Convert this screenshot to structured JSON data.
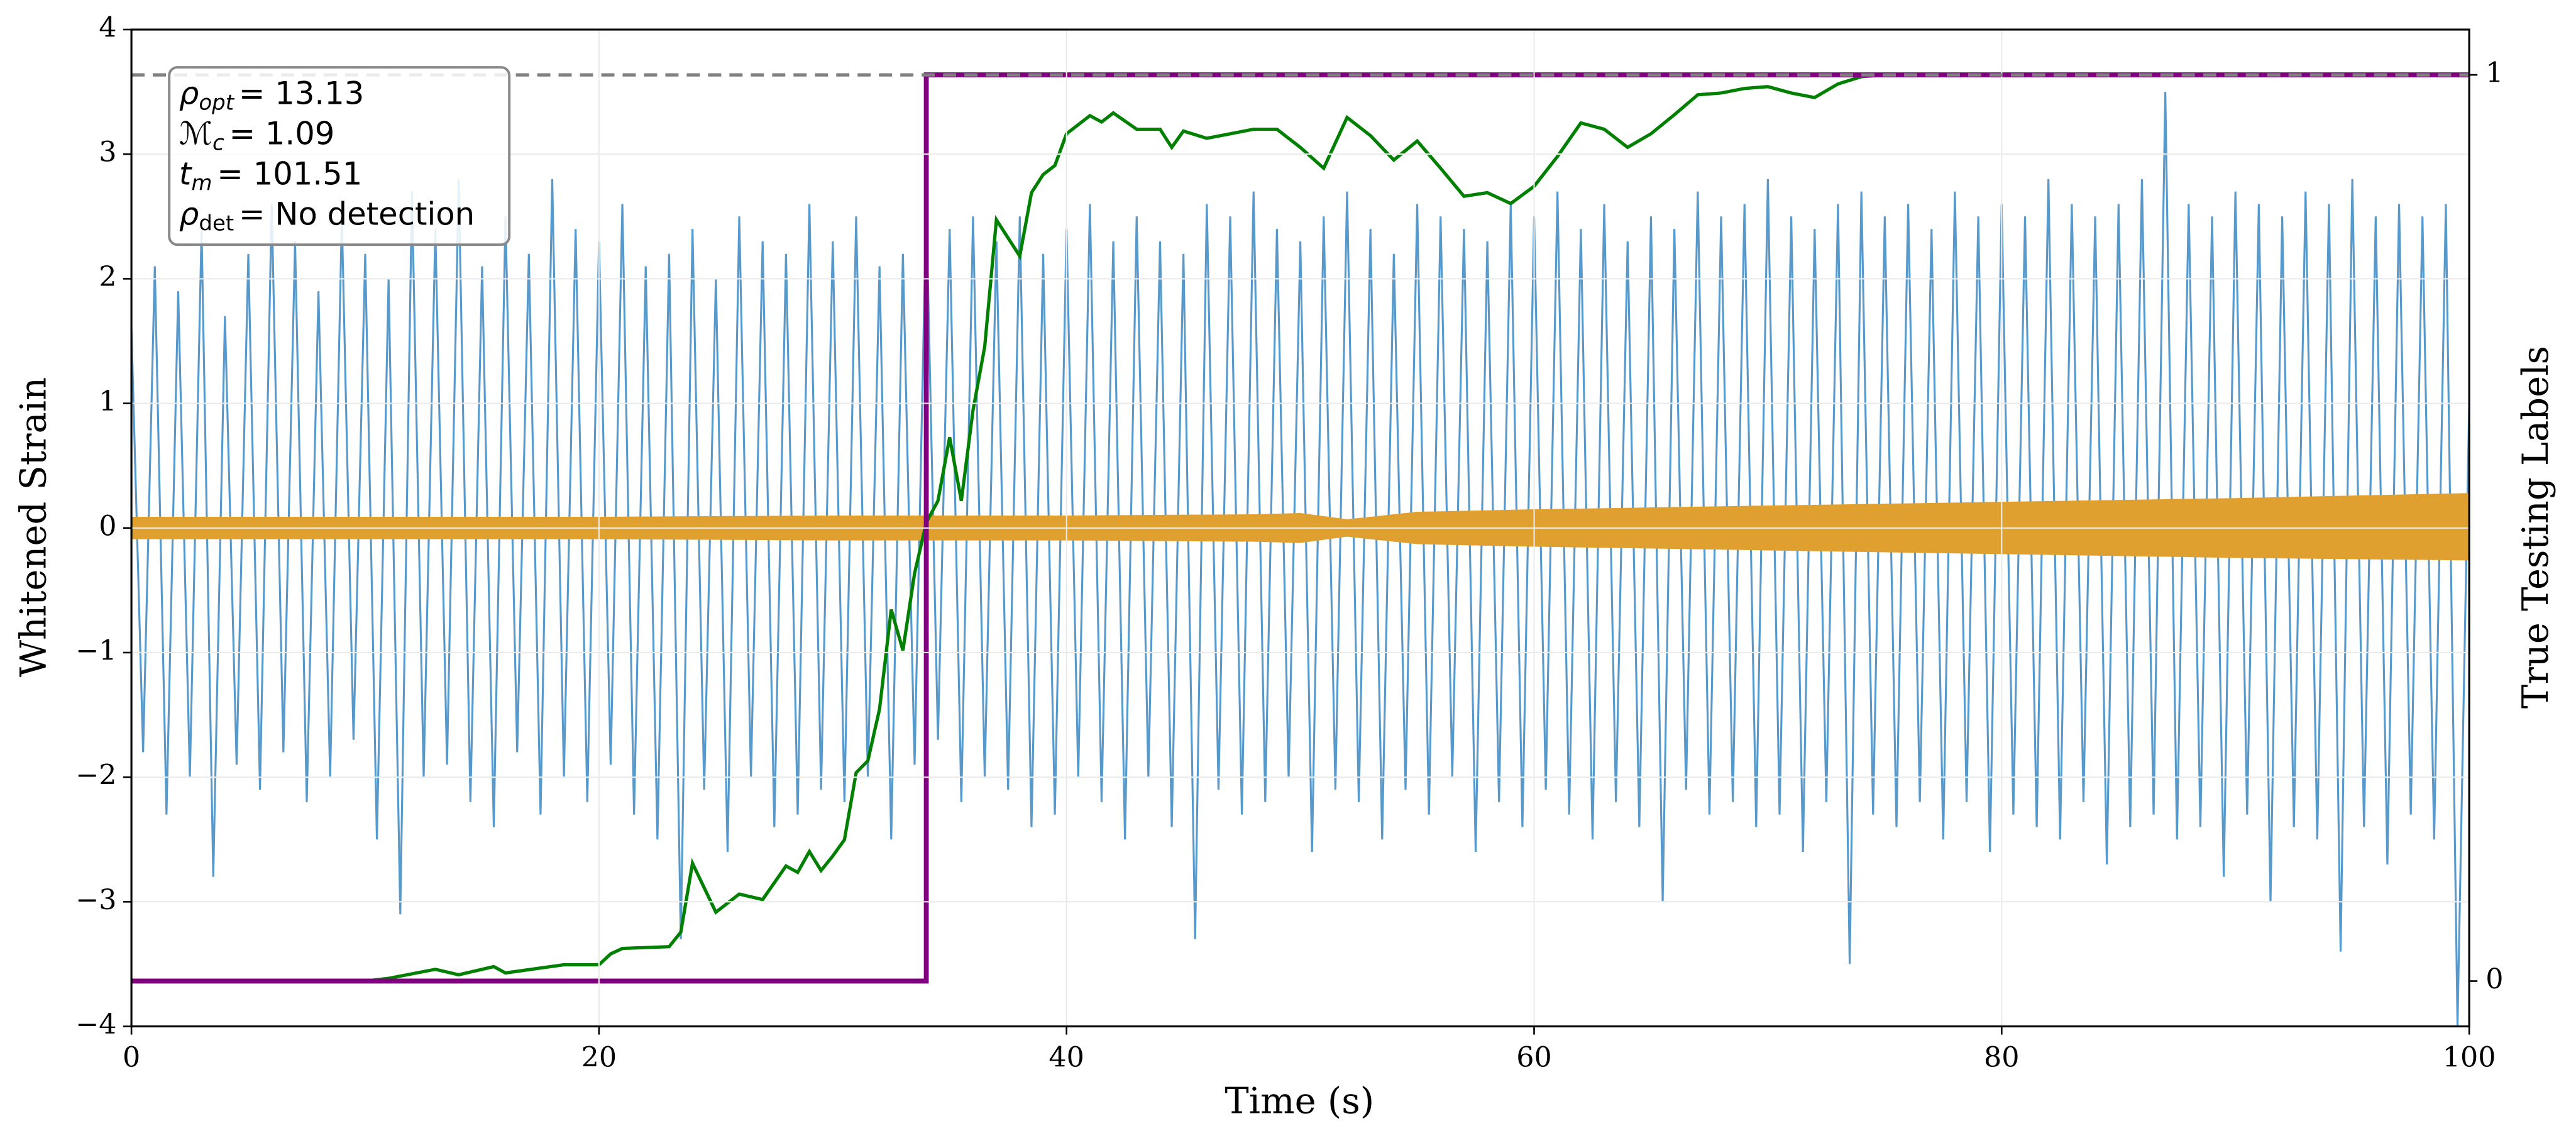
{
  "chart_data": {
    "type": "line",
    "xlabel": "Time (s)",
    "ylabel": "Whitened Strain",
    "y2label": "True Testing Labels",
    "xlim": [
      0,
      100
    ],
    "xticks": [
      0,
      20,
      40,
      60,
      80,
      100
    ],
    "ylim": [
      -4,
      4
    ],
    "yticks": [
      {
        "value": -4,
        "label": "−4"
      },
      {
        "value": -3,
        "label": "−3"
      },
      {
        "value": -2,
        "label": "−2"
      },
      {
        "value": -1,
        "label": "−1"
      },
      0,
      1,
      2,
      3,
      4
    ],
    "y2lim": [
      -0.05,
      1.05
    ],
    "y2ticks": [
      0,
      1
    ],
    "grid": true,
    "annotations": [
      {
        "symbol": "ρ",
        "sub": "opt",
        "text": "= 13.13"
      },
      {
        "symbol": "ℳ",
        "sub": "c",
        "text": "= 1.09"
      },
      {
        "symbol": "t",
        "sub": "m",
        "text": "= 101.51"
      },
      {
        "symbol": "ρ",
        "sub": "det",
        "text": "= No detection"
      }
    ],
    "series": [
      {
        "color": "#4f94c8",
        "x": [
          0,
          0.5,
          1,
          1.5,
          2,
          2.5,
          3,
          3.5,
          4,
          4.5,
          5,
          5.5,
          6,
          6.5,
          7,
          7.5,
          8,
          8.5,
          9,
          9.5,
          10,
          10.5,
          11,
          11.5,
          12,
          12.5,
          13,
          13.5,
          14,
          14.5,
          15,
          15.5,
          16,
          16.5,
          17,
          17.5,
          18,
          18.5,
          19,
          19.5,
          20,
          20.5,
          21,
          21.5,
          22,
          22.5,
          23,
          23.5,
          24,
          24.5,
          25,
          25.5,
          26,
          26.5,
          27,
          27.5,
          28,
          28.5,
          29,
          29.5,
          30,
          30.5,
          31,
          31.5,
          32,
          32.5,
          33,
          33.5,
          34,
          34.5,
          35,
          35.5,
          36,
          36.5,
          37,
          37.5,
          38,
          38.5,
          39,
          39.5,
          40,
          40.5,
          41,
          41.5,
          42,
          42.5,
          43,
          43.5,
          44,
          44.5,
          45,
          45.5,
          46,
          46.5,
          47,
          47.5,
          48,
          48.5,
          49,
          49.5,
          50,
          50.5,
          51,
          51.5,
          52,
          52.5,
          53,
          53.5,
          54,
          54.5,
          55,
          55.5,
          56,
          56.5,
          57,
          57.5,
          58,
          58.5,
          59,
          59.5,
          60,
          60.5,
          61,
          61.5,
          62,
          62.5,
          63,
          63.5,
          64,
          64.5,
          65,
          65.5,
          66,
          66.5,
          67,
          67.5,
          68,
          68.5,
          69,
          69.5,
          70,
          70.5,
          71,
          71.5,
          72,
          72.5,
          73,
          73.5,
          74,
          74.5,
          75,
          75.5,
          76,
          76.5,
          77,
          77.5,
          78,
          78.5,
          79,
          79.5,
          80,
          80.5,
          81,
          81.5,
          82,
          82.5,
          83,
          83.5,
          84,
          84.5,
          85,
          85.5,
          86,
          86.5,
          87,
          87.5,
          88,
          88.5,
          89,
          89.5,
          90,
          90.5,
          91,
          91.5,
          92,
          92.5,
          93,
          93.5,
          94,
          94.5,
          95,
          95.5,
          96,
          96.5,
          97,
          97.5,
          98,
          98.5,
          99,
          99.5,
          100
        ],
        "values": [
          1.6,
          -1.8,
          2.1,
          -2.3,
          1.9,
          -2.0,
          2.4,
          -2.8,
          1.7,
          -1.9,
          2.2,
          -2.1,
          2.6,
          -1.8,
          2.3,
          -2.2,
          1.9,
          -2.0,
          2.5,
          -1.7,
          2.2,
          -2.5,
          2.0,
          -3.1,
          2.7,
          -2.0,
          2.4,
          -1.9,
          2.8,
          -2.2,
          2.1,
          -2.4,
          2.5,
          -1.8,
          2.2,
          -2.3,
          2.8,
          -2.0,
          2.4,
          -2.2,
          2.3,
          -1.9,
          2.6,
          -2.3,
          2.1,
          -2.5,
          2.2,
          -3.3,
          2.4,
          -2.1,
          2.0,
          -2.6,
          2.5,
          -2.0,
          2.3,
          -2.4,
          2.2,
          -2.3,
          2.6,
          -2.1,
          2.3,
          -2.2,
          2.5,
          -2.0,
          2.1,
          -2.5,
          2.2,
          -1.9,
          2.6,
          -1.7,
          2.4,
          -2.2,
          2.5,
          -2.0,
          2.3,
          -2.1,
          2.5,
          -2.4,
          2.2,
          -2.3,
          2.4,
          -2.0,
          2.6,
          -2.2,
          2.3,
          -2.5,
          2.5,
          -2.0,
          2.3,
          -2.4,
          2.2,
          -3.3,
          2.6,
          -2.1,
          2.5,
          -2.3,
          2.7,
          -2.2,
          2.4,
          -2.0,
          2.3,
          -2.6,
          2.5,
          -2.1,
          2.7,
          -2.2,
          2.4,
          -2.5,
          2.2,
          -2.1,
          2.6,
          -2.3,
          2.5,
          -2.0,
          2.4,
          -2.6,
          2.3,
          -2.2,
          2.6,
          -2.4,
          2.5,
          -2.1,
          2.7,
          -2.3,
          2.4,
          -2.5,
          2.6,
          -2.2,
          2.3,
          -2.4,
          2.5,
          -3.0,
          2.4,
          -2.1,
          2.7,
          -2.3,
          2.5,
          -2.2,
          2.6,
          -2.4,
          2.8,
          -2.3,
          2.5,
          -2.6,
          2.4,
          -2.2,
          2.6,
          -3.5,
          2.7,
          -2.3,
          2.5,
          -2.4,
          2.6,
          -2.2,
          2.4,
          -2.5,
          2.7,
          -2.2,
          2.5,
          -2.6,
          2.6,
          -2.3,
          2.5,
          -2.4,
          2.8,
          -2.5,
          2.6,
          -2.2,
          2.5,
          -2.7,
          2.6,
          -2.4,
          2.8,
          -2.3,
          3.5,
          -2.5,
          2.6,
          -2.4,
          2.5,
          -2.8,
          2.7,
          -2.3,
          2.6,
          -3.0,
          2.5,
          -2.4,
          2.7,
          -2.5,
          2.6,
          -3.4,
          2.8,
          -2.4,
          2.5,
          -2.7,
          2.6,
          -2.3,
          2.5,
          -2.5,
          2.6,
          -4.0,
          1.0
        ]
      },
      {
        "color": "#008000",
        "axis": "y2",
        "x": [
          0,
          10,
          11,
          13,
          14,
          15.5,
          16,
          18.5,
          20,
          20.5,
          21,
          23,
          23.5,
          24,
          25,
          26,
          27,
          28,
          28.5,
          29,
          29.5,
          30,
          30.5,
          31,
          31.5,
          32,
          32.5,
          33,
          33.5,
          34,
          34.5,
          35,
          35.5,
          36,
          36.5,
          37,
          37.5,
          38,
          38.5,
          39,
          39.5,
          40,
          41,
          41.5,
          42,
          43,
          44,
          44.5,
          45,
          46,
          47,
          48,
          49,
          50,
          51,
          52,
          53,
          54,
          55,
          56,
          57,
          58,
          59,
          60,
          61,
          62,
          63,
          64,
          65,
          66,
          67,
          68,
          69,
          70,
          71,
          72,
          73,
          74,
          75,
          100
        ],
        "values": [
          0,
          0,
          0.003,
          0.013,
          0.007,
          0.016,
          0.009,
          0.018,
          0.018,
          0.03,
          0.036,
          0.038,
          0.054,
          0.13,
          0.076,
          0.096,
          0.09,
          0.127,
          0.12,
          0.143,
          0.122,
          0.138,
          0.156,
          0.23,
          0.243,
          0.3,
          0.41,
          0.365,
          0.45,
          0.506,
          0.53,
          0.6,
          0.53,
          0.63,
          0.7,
          0.84,
          0.82,
          0.8,
          0.87,
          0.89,
          0.9,
          0.935,
          0.955,
          0.948,
          0.958,
          0.94,
          0.94,
          0.92,
          0.938,
          0.93,
          0.935,
          0.94,
          0.94,
          0.92,
          0.897,
          0.953,
          0.933,
          0.906,
          0.927,
          0.897,
          0.866,
          0.87,
          0.858,
          0.877,
          0.91,
          0.947,
          0.94,
          0.92,
          0.935,
          0.956,
          0.978,
          0.98,
          0.985,
          0.987,
          0.98,
          0.975,
          0.99,
          0.998,
          1,
          1
        ]
      },
      {
        "color": "#800080",
        "axis": "y2",
        "x": [
          0,
          34,
          34,
          100
        ],
        "values": [
          0,
          0,
          1,
          1
        ]
      }
    ],
    "band": {
      "color": "#e0a030",
      "x": [
        0,
        10,
        20,
        30,
        40,
        48,
        50,
        52,
        55,
        60,
        70,
        80,
        90,
        100
      ],
      "upper": [
        0.09,
        0.09,
        0.09,
        0.1,
        0.1,
        0.11,
        0.12,
        0.07,
        0.13,
        0.15,
        0.18,
        0.21,
        0.24,
        0.28
      ],
      "lower": [
        -0.09,
        -0.09,
        -0.09,
        -0.1,
        -0.1,
        -0.11,
        -0.12,
        -0.07,
        -0.13,
        -0.15,
        -0.18,
        -0.21,
        -0.24,
        -0.26
      ]
    },
    "hlines": [
      {
        "value": 1,
        "axis": "y2",
        "color": "#808080",
        "dash": true
      }
    ]
  }
}
